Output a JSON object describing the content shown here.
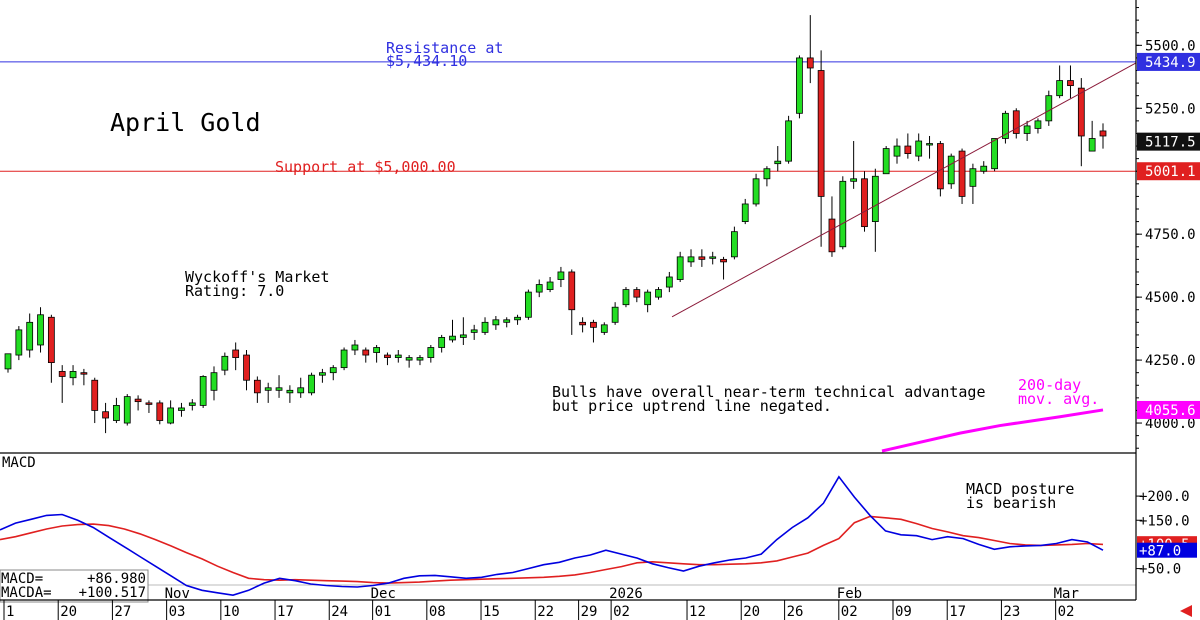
{
  "chart_data": [
    {
      "type": "candlestick",
      "title": "April Gold",
      "rating_text": [
        "Wyckoff's Market",
        "Rating: 7.0"
      ],
      "commentary": [
        "Bulls have overall near-term technical advantage",
        "but price uptrend line negated."
      ],
      "resistance": {
        "value": 5434.1,
        "label": [
          "Resistance at",
          "$5,434.10"
        ],
        "tag": "5434.9",
        "color": "#3030e0"
      },
      "support": {
        "value": 5000.0,
        "label": "Support at $5,000.00",
        "tag": "5001.1",
        "color": "#e02020"
      },
      "last_price": {
        "value": 5117.5,
        "tag": "5117.5"
      },
      "ma200": {
        "label": [
          "200-day",
          "mov. avg."
        ],
        "tag": "4055.6",
        "color": "#ff00ff",
        "points": [
          [
            41,
            3889
          ],
          [
            49,
            3960
          ],
          [
            56,
            4000
          ],
          [
            61,
            4025
          ],
          [
            70,
            4055
          ]
        ]
      },
      "trendline": {
        "from": [
          49,
          4422
        ],
        "to": [
          72,
          5430
        ]
      },
      "ylim": [
        3885,
        5680
      ],
      "yticks": [
        {
          "v": 4000,
          "label": "4000.0"
        },
        {
          "v": 4250,
          "label": "4250.0"
        },
        {
          "v": 4500,
          "label": "4500.0"
        },
        {
          "v": 4750,
          "label": "4750.0"
        },
        {
          "v": 5000,
          "label": "5000.0"
        },
        {
          "v": 5250,
          "label": "5250.0"
        },
        {
          "v": 5500,
          "label": "5500.0"
        }
      ],
      "candles": [
        [
          4215,
          4275,
          4200,
          4265
        ],
        [
          4270,
          4370,
          4250,
          4385
        ],
        [
          4290,
          4400,
          4260,
          4435
        ],
        [
          4310,
          4430,
          4280,
          4460
        ],
        [
          4420,
          4240,
          4160,
          4430
        ],
        [
          4205,
          4185,
          4080,
          4230
        ],
        [
          4180,
          4205,
          4150,
          4230
        ],
        [
          4200,
          4195,
          4150,
          4215
        ],
        [
          4170,
          4050,
          4000,
          4180
        ],
        [
          4045,
          4020,
          3960,
          4080
        ],
        [
          4010,
          4070,
          4000,
          4100
        ],
        [
          4000,
          4105,
          3990,
          4115
        ],
        [
          4095,
          4085,
          4050,
          4110
        ],
        [
          4080,
          4075,
          4040,
          4090
        ],
        [
          4080,
          4010,
          3995,
          4090
        ],
        [
          4000,
          4060,
          3995,
          4090
        ],
        [
          4050,
          4060,
          4025,
          4080
        ],
        [
          4070,
          4080,
          4050,
          4095
        ],
        [
          4070,
          4185,
          4060,
          4190
        ],
        [
          4130,
          4200,
          4090,
          4225
        ],
        [
          4210,
          4265,
          4190,
          4280
        ],
        [
          4290,
          4260,
          4210,
          4320
        ],
        [
          4270,
          4170,
          4130,
          4290
        ],
        [
          4170,
          4120,
          4080,
          4185
        ],
        [
          4130,
          4140,
          4080,
          4160
        ],
        [
          4130,
          4140,
          4100,
          4190
        ],
        [
          4120,
          4130,
          4080,
          4150
        ],
        [
          4120,
          4140,
          4100,
          4180
        ],
        [
          4120,
          4190,
          4110,
          4200
        ],
        [
          4190,
          4200,
          4160,
          4215
        ],
        [
          4200,
          4220,
          4170,
          4230
        ],
        [
          4220,
          4290,
          4210,
          4300
        ],
        [
          4290,
          4310,
          4270,
          4330
        ],
        [
          4290,
          4270,
          4240,
          4300
        ],
        [
          4280,
          4300,
          4240,
          4310
        ],
        [
          4270,
          4260,
          4230,
          4280
        ],
        [
          4260,
          4270,
          4240,
          4290
        ],
        [
          4250,
          4260,
          4220,
          4270
        ],
        [
          4250,
          4260,
          4230,
          4270
        ],
        [
          4260,
          4300,
          4240,
          4310
        ]
      ],
      "candles2": [
        [
          4300,
          4340,
          4280,
          4350
        ],
        [
          4330,
          4345,
          4320,
          4410
        ],
        [
          4340,
          4350,
          4310,
          4420
        ],
        [
          4360,
          4370,
          4330,
          4390
        ],
        [
          4360,
          4400,
          4350,
          4420
        ],
        [
          4390,
          4410,
          4370,
          4425
        ],
        [
          4400,
          4410,
          4380,
          4420
        ],
        [
          4410,
          4420,
          4390,
          4430
        ],
        [
          4420,
          4520,
          4410,
          4530
        ],
        [
          4520,
          4550,
          4500,
          4570
        ],
        [
          4530,
          4560,
          4520,
          4580
        ],
        [
          4570,
          4600,
          4540,
          4620
        ],
        [
          4600,
          4450,
          4350,
          4610
        ],
        [
          4400,
          4390,
          4360,
          4420
        ],
        [
          4400,
          4380,
          4320,
          4410
        ],
        [
          4360,
          4390,
          4350,
          4400
        ],
        [
          4400,
          4460,
          4390,
          4480
        ],
        [
          4470,
          4530,
          4460,
          4540
        ],
        [
          4530,
          4500,
          4480,
          4540
        ],
        [
          4470,
          4520,
          4440,
          4530
        ],
        [
          4500,
          4530,
          4490,
          4540
        ],
        [
          4540,
          4580,
          4520,
          4600
        ],
        [
          4570,
          4660,
          4560,
          4680
        ],
        [
          4640,
          4660,
          4620,
          4690
        ],
        [
          4660,
          4650,
          4620,
          4690
        ],
        [
          4660,
          4660,
          4630,
          4680
        ],
        [
          4650,
          4640,
          4570,
          4660
        ],
        [
          4660,
          4760,
          4650,
          4780
        ],
        [
          4800,
          4870,
          4790,
          4890
        ],
        [
          4870,
          4970,
          4860,
          4990
        ],
        [
          4970,
          5010,
          4940,
          5020
        ],
        [
          5030,
          5040,
          5000,
          5100
        ],
        [
          5040,
          5200,
          5030,
          5220
        ],
        [
          5230,
          5450,
          5210,
          5460
        ],
        [
          5450,
          5410,
          5350,
          5620
        ],
        [
          5400,
          4900,
          4700,
          5480
        ],
        [
          4810,
          4680,
          4660,
          4900
        ],
        [
          4700,
          4960,
          4690,
          4980
        ],
        [
          4960,
          4970,
          4930,
          5120
        ],
        [
          4970,
          4780,
          4760,
          5000
        ]
      ],
      "candles3": [
        [
          4800,
          4980,
          4680,
          5010
        ],
        [
          4990,
          5090,
          4990,
          5100
        ],
        [
          5060,
          5100,
          5030,
          5130
        ],
        [
          5100,
          5070,
          5050,
          5150
        ],
        [
          5060,
          5120,
          5040,
          5150
        ],
        [
          5110,
          5110,
          5050,
          5140
        ],
        [
          5110,
          4930,
          4900,
          5120
        ],
        [
          4950,
          5060,
          4930,
          5070
        ],
        [
          5080,
          4900,
          4870,
          5090
        ],
        [
          4940,
          5010,
          4870,
          5030
        ],
        [
          5000,
          5020,
          4990,
          5040
        ],
        [
          5010,
          5130,
          5000,
          5130
        ],
        [
          5130,
          5230,
          5110,
          5240
        ],
        [
          5240,
          5150,
          5130,
          5250
        ],
        [
          5150,
          5180,
          5120,
          5200
        ],
        [
          5170,
          5200,
          5150,
          5210
        ],
        [
          5200,
          5300,
          5180,
          5320
        ],
        [
          5300,
          5360,
          5290,
          5420
        ],
        [
          5360,
          5340,
          5290,
          5420
        ],
        [
          5330,
          5140,
          5020,
          5370
        ],
        [
          5080,
          5130,
          5080,
          5200
        ],
        [
          5160,
          5140,
          5090,
          5190
        ]
      ],
      "macd": {
        "title": "MACD",
        "readout": [
          [
            "MACD=",
            "+86.980"
          ],
          [
            "MACDA=",
            "+100.517"
          ]
        ],
        "note": [
          "MACD posture",
          "is bearish"
        ],
        "tags": [
          {
            "label": "+100.5",
            "v": 100.5,
            "color": "#e02020"
          },
          {
            "label": "+87.0",
            "v": 87.0,
            "color": "#0000e0"
          }
        ],
        "ylim": [
          -15,
          285
        ],
        "yticks": [
          {
            "v": 50,
            "label": "+50.0"
          },
          {
            "v": 150,
            "label": "+150.0"
          },
          {
            "v": 200,
            "label": "+200.0"
          }
        ],
        "macd_line": [
          130,
          144,
          152,
          160,
          162,
          150,
          135,
          115,
          95,
          75,
          55,
          35,
          15,
          5,
          0,
          -5,
          5,
          20,
          30,
          25,
          18,
          15,
          13,
          12,
          15,
          20,
          30,
          35,
          36,
          33,
          30,
          32,
          38,
          42,
          50,
          58,
          63,
          72,
          78,
          88,
          80,
          72,
          60,
          52,
          45,
          55,
          62,
          68,
          72,
          80,
          110,
          135,
          155,
          185,
          240,
          198,
          160,
          128,
          120,
          118,
          110,
          116,
          112,
          100,
          90,
          95,
          97,
          98,
          102,
          110,
          105,
          88
        ],
        "macda_line": [
          110,
          116,
          124,
          132,
          138,
          141,
          142,
          139,
          132,
          122,
          110,
          97,
          83,
          70,
          55,
          42,
          30,
          27,
          26,
          27,
          26,
          25,
          24,
          23,
          21,
          20,
          21,
          22,
          24,
          26,
          27,
          28,
          29,
          30,
          31,
          32,
          34,
          37,
          42,
          48,
          54,
          62,
          64,
          62,
          60,
          58,
          58,
          59,
          60,
          62,
          66,
          74,
          82,
          98,
          112,
          145,
          158,
          155,
          152,
          143,
          133,
          126,
          118,
          114,
          108,
          102,
          99,
          98,
          99,
          100,
          102,
          100
        ]
      },
      "xlabels": [
        {
          "i": 0,
          "label": "1"
        },
        {
          "i": 5,
          "label": "20"
        },
        {
          "i": 10,
          "label": "27"
        },
        {
          "i": 15,
          "label": "03"
        },
        {
          "i": 20,
          "label": "10"
        },
        {
          "i": 25,
          "label": "17"
        },
        {
          "i": 30,
          "label": "24"
        },
        {
          "i": 34,
          "label": "01"
        },
        {
          "i": 39,
          "label": "08"
        },
        {
          "i": 44,
          "label": "15"
        },
        {
          "i": 49,
          "label": "22"
        },
        {
          "i": 53,
          "label": "29"
        },
        {
          "i": 56,
          "label": "02"
        },
        {
          "i": 63,
          "label": "12"
        },
        {
          "i": 68,
          "label": "20"
        },
        {
          "i": 72,
          "label": "26"
        },
        {
          "i": 77,
          "label": "02"
        },
        {
          "i": 82,
          "label": "09"
        },
        {
          "i": 87,
          "label": "17"
        },
        {
          "i": 92,
          "label": "23"
        },
        {
          "i": 97,
          "label": "02"
        }
      ],
      "month_labels": [
        {
          "i": 15,
          "label": "Nov"
        },
        {
          "i": 34,
          "label": "Dec"
        },
        {
          "i": 56,
          "label": "2026"
        },
        {
          "i": 77,
          "label": "Feb"
        },
        {
          "i": 97,
          "label": "Mar"
        }
      ]
    }
  ]
}
